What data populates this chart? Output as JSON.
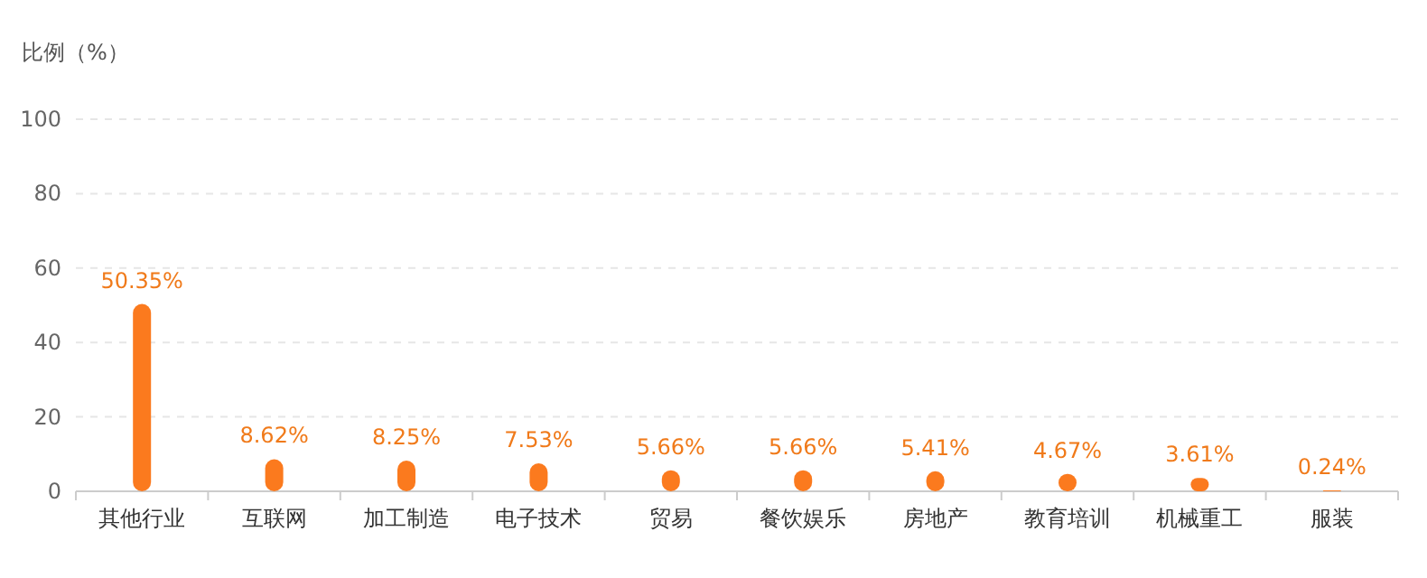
{
  "chart_data": {
    "type": "bar",
    "ylabel": "比例（%）",
    "categories": [
      "其他行业",
      "互联网",
      "加工制造",
      "电子技术",
      "贸易",
      "餐饮娱乐",
      "房地产",
      "教育培训",
      "机械重工",
      "服装"
    ],
    "values": [
      50.35,
      8.62,
      8.25,
      7.53,
      5.66,
      5.66,
      5.41,
      4.67,
      3.61,
      0.24
    ],
    "value_labels": [
      "50.35%",
      "8.62%",
      "8.25%",
      "7.53%",
      "5.66%",
      "5.66%",
      "5.41%",
      "4.67%",
      "3.61%",
      "0.24%"
    ],
    "color": "#fb7a1e",
    "ylim": [
      0,
      100
    ],
    "yticks": [
      0,
      20,
      40,
      60,
      80,
      100
    ],
    "grid": "y"
  }
}
